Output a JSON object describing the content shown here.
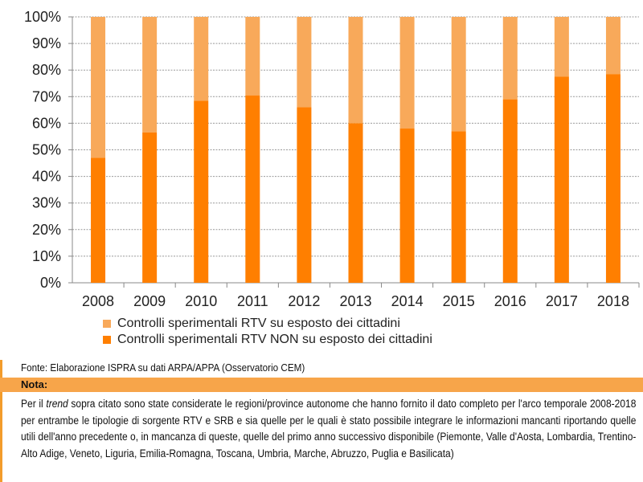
{
  "chart_data": {
    "type": "bar",
    "stacked": true,
    "percent": true,
    "categories": [
      "2008",
      "2009",
      "2010",
      "2011",
      "2012",
      "2013",
      "2014",
      "2015",
      "2016",
      "2017",
      "2018"
    ],
    "series": [
      {
        "name": "Controlli sperimentali RTV NON su esposto dei cittadini",
        "color": "#ff7f00",
        "values": [
          47,
          56.5,
          68.5,
          70.5,
          66,
          60,
          58,
          57,
          69,
          77.5,
          78.5
        ]
      },
      {
        "name": "Controlli sperimentali RTV su esposto dei cittadini",
        "color": "#f8a95a",
        "values": [
          53,
          43.5,
          31.5,
          29.5,
          34,
          40,
          42,
          43,
          31,
          22.5,
          21.5
        ]
      }
    ],
    "yticks": [
      "0%",
      "10%",
      "20%",
      "30%",
      "40%",
      "50%",
      "60%",
      "70%",
      "80%",
      "90%",
      "100%"
    ],
    "ylim": [
      0,
      100
    ],
    "grid": true,
    "legend_placement": "bottom"
  },
  "legend": {
    "item1": "Controlli sperimentali RTV su esposto dei cittadini",
    "item2": "Controlli sperimentali RTV NON su esposto dei cittadini"
  },
  "source": "Fonte: Elaborazione ISPRA su dati ARPA/APPA (Osservatorio CEM)",
  "nota": {
    "label": "Nota:",
    "pre": "Per il ",
    "italic": "trend",
    "text": " sopra citato sono state considerate le regioni/province autonome che hanno fornito il dato completo per l'arco temporale 2008-2018 per entrambe le tipologie di sorgente RTV e SRB e sia quelle per le quali è stato possibile integrare le informazioni mancanti riportando quelle utili dell'anno precedente o, in mancanza di queste, quelle del primo anno successivo disponibile (Piemonte, Valle d'Aosta, Lombardia, Trentino-Alto Adige, Veneto, Liguria, Emilia-Romagna, Toscana, Umbria, Marche, Abruzzo, Puglia e Basilicata)"
  }
}
